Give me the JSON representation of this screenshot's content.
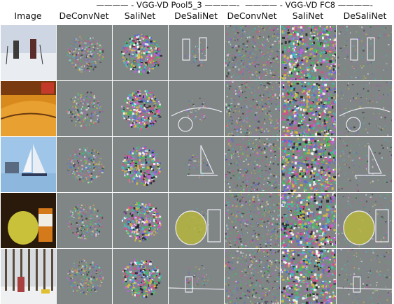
{
  "groups": [
    {
      "label": "———— - VGG-VD Pool5_3 ————-"
    },
    {
      "label": "———— - VGG-VD FC8 ————-"
    }
  ],
  "columns": [
    {
      "label": "Image",
      "style": "photo"
    },
    {
      "label": "DeConvNet",
      "style": "pool-deconv"
    },
    {
      "label": "SaliNet",
      "style": "pool-sali"
    },
    {
      "label": "DeSaliNet",
      "style": "pool-desali"
    },
    {
      "label": "DeConvNet",
      "style": "fc-deconv"
    },
    {
      "label": "SaliNet",
      "style": "fc-sali"
    },
    {
      "label": "DeSaliNet",
      "style": "fc-desali"
    }
  ],
  "rows": [
    {
      "subject": "skiers",
      "photo_colors": [
        "#cfd6e3",
        "#e9ecf1",
        "#3d3a3a"
      ]
    },
    {
      "subject": "taxi",
      "photo_colors": [
        "#d98a1c",
        "#7a3a10",
        "#c43a2a"
      ]
    },
    {
      "subject": "sailboat",
      "photo_colors": [
        "#9fc6e8",
        "#e9eef4",
        "#2d3a5a"
      ]
    },
    {
      "subject": "pear",
      "photo_colors": [
        "#2a1a0c",
        "#c9c13a",
        "#d47a1a"
      ]
    },
    {
      "subject": "snow-woods",
      "photo_colors": [
        "#d7dbe0",
        "#5a4a3a",
        "#a84040"
      ]
    }
  ]
}
